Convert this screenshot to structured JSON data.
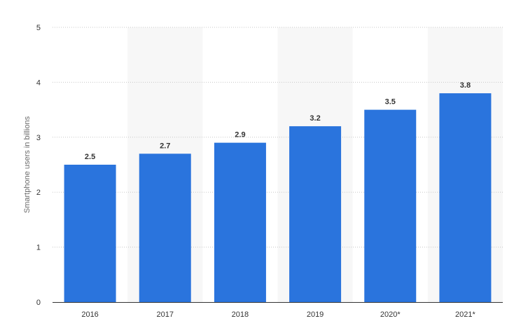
{
  "chart_data": {
    "type": "bar",
    "categories": [
      "2016",
      "2017",
      "2018",
      "2019",
      "2020*",
      "2021*"
    ],
    "values": [
      2.5,
      2.7,
      2.9,
      3.2,
      3.5,
      3.8
    ],
    "data_labels": [
      "2.5",
      "2.7",
      "2.9",
      "3.2",
      "3.5",
      "3.8"
    ],
    "ylabel": "Smartphone users in billions",
    "ylim": [
      0,
      5
    ],
    "yticks": [
      "0",
      "1",
      "2",
      "3",
      "4",
      "5"
    ],
    "grid": "horizontal dotted",
    "colors": {
      "bar": "#2a74dd",
      "alt_band": "#f7f7f7",
      "grid": "#c8c8c8",
      "axis": "#333333"
    }
  }
}
